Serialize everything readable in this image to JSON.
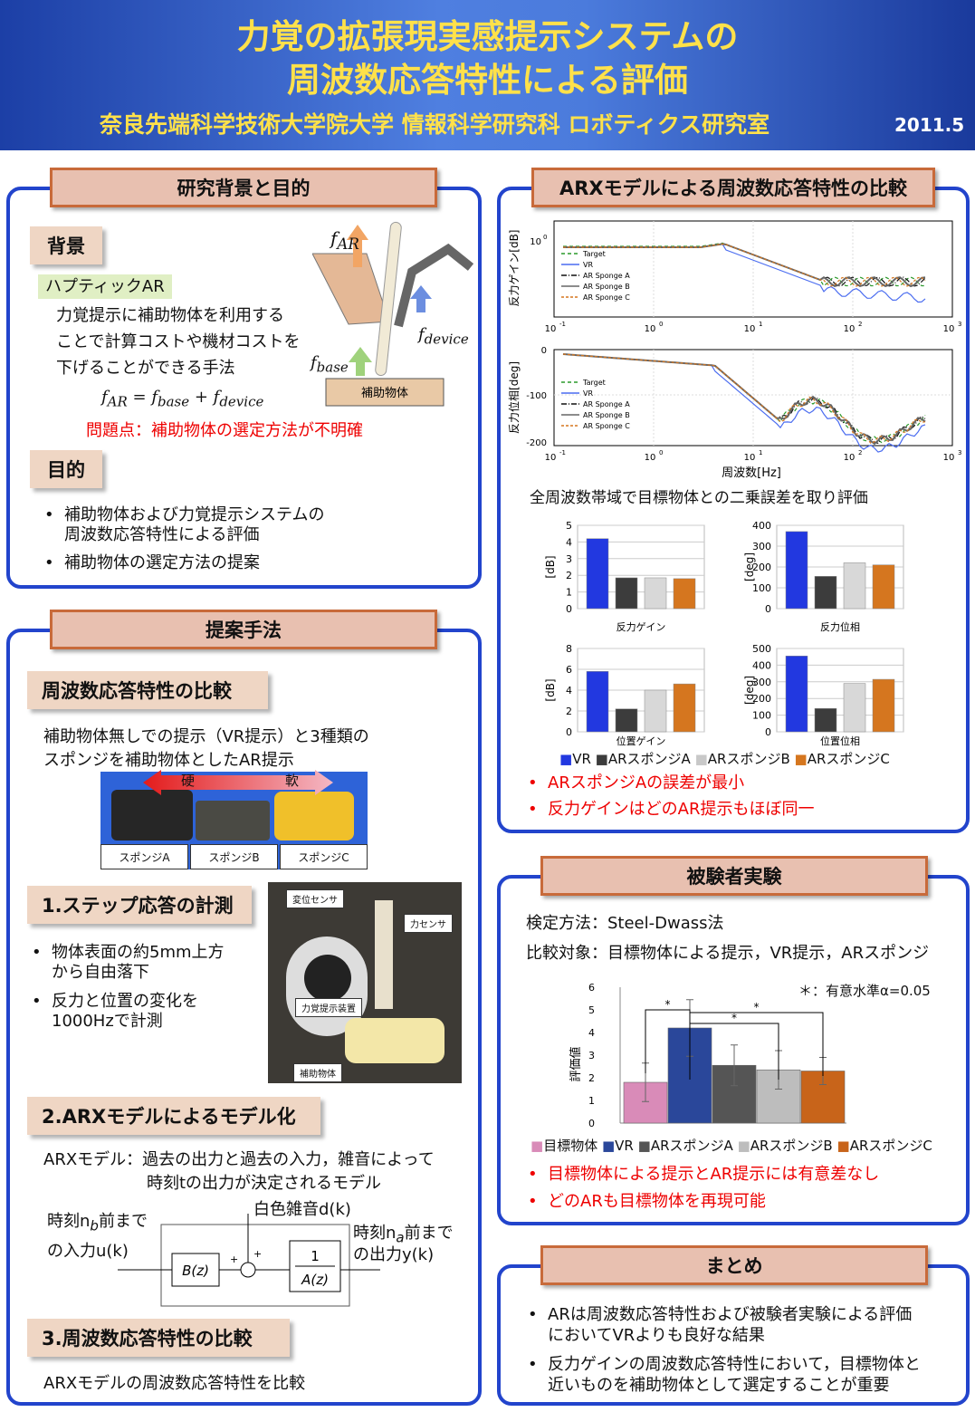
{
  "header": {
    "title1": "力覚の拡張現実感提示システムの",
    "title2": "周波数応答特性による評価",
    "affiliation": "奈良先端科学技術大学院大学  情報科学研究科  ロボティクス研究室",
    "date": "2011.5"
  },
  "background": {
    "title": "研究背景と目的",
    "sec1": "背景",
    "haptic": "ハプティックAR",
    "desc": [
      "力覚提示に補助物体を利用する",
      "ことで計算コストや機材コストを",
      "下げることができる手法"
    ],
    "problem": "問題点：補助物体の選定方法が不明確",
    "fig_label": "補助物体",
    "sec2": "目的",
    "purpose": [
      "補助物体および力覚提示システムの",
      "周波数応答特性による評価",
      "補助物体の選定方法の提案"
    ]
  },
  "method": {
    "title": "提案手法",
    "s1": "周波数応答特性の比較",
    "s1_text": [
      "補助物体無しでの提示（VR提示）と3種類の",
      "スポンジを補助物体としたAR提示"
    ],
    "hard": "硬",
    "soft": "軟",
    "sponges": [
      "スポンジA",
      "スポンジB",
      "スポンジC"
    ],
    "s2": "1.ステップ応答の計測",
    "s2_items": [
      "物体表面の約5mm上方",
      "から自由落下",
      "反力と位置の変化を",
      "1000Hzで計測"
    ],
    "photo_labels": [
      "変位センサ",
      "力センサ",
      "力覚提示装置",
      "補助物体"
    ],
    "s3": "2.ARXモデルによるモデル化",
    "s3_text": [
      "ARXモデル：過去の出力と過去の入力，雑音によって",
      "時刻tの出力が決定されるモデル"
    ],
    "block": {
      "noise": "白色雑音d(k)",
      "in1": "時刻n",
      "in1b": "前まで",
      "in2": "の入力u(k)",
      "out1": "時刻n",
      "out1b": "前まで",
      "out2": "の出力y(k)",
      "B": "B(z)",
      "one": "1",
      "A": "A(z)",
      "plus": "+"
    },
    "s4": "3.周波数応答特性の比較",
    "s4_text": "ARXモデルの周波数応答特性を比較"
  },
  "arx": {
    "title": "ARXモデルによる周波数応答特性の比較",
    "ylabel1": "反力ゲイン[dB]",
    "ylabel2": "反力位相[deg]",
    "xlabel": "周波数[Hz]",
    "legend": [
      "Target",
      "VR",
      "AR Sponge A",
      "AR Sponge B",
      "AR Sponge C"
    ],
    "xticks": [
      "10",
      "10",
      "10",
      "10",
      "10"
    ],
    "xexp": [
      "-1",
      "0",
      "1",
      "2",
      "3"
    ],
    "yticks1": [
      "10",
      "0"
    ],
    "yticks2": [
      "0",
      "-100",
      "-200"
    ],
    "error_title": "全周波数帯域で目標物体との二乗誤差を取り評価",
    "legend2": [
      "VR",
      "ARスポンジA",
      "ARスポンジB",
      "ARスポンジC"
    ],
    "bullets": [
      "ARスポンジAの誤差が最小",
      "反力ゲインはどのAR提示もほぼ同一"
    ]
  },
  "subject": {
    "title": "被験者実験",
    "method": "検定方法：Steel-Dwass法",
    "compare": "比較対象：目標物体による提示，VR提示，ARスポンジ",
    "note": "＊：有意水準α=0.05",
    "ylabel": "評価値",
    "star": "*",
    "legend": [
      "目標物体",
      "VR",
      "ARスポンジA",
      "ARスポンジB",
      "ARスポンジC"
    ],
    "bullets": [
      "目標物体による提示とAR提示には有意差なし",
      "どのARも目標物体を再現可能"
    ]
  },
  "summary": {
    "title": "まとめ",
    "items": [
      "ARは周波数応答特性および被験者実験による評価",
      "においてVRよりも良好な結果",
      "反力ゲインの周波数応答特性において，目標物体と",
      "近いものを補助物体として選定することが重要"
    ]
  },
  "chart_data": [
    {
      "type": "bar",
      "title": "",
      "xlabel": "反力ゲイン",
      "ylabel": "[dB]",
      "ylim": [
        0,
        5
      ],
      "yticks": [
        0,
        1,
        2,
        3,
        4,
        5
      ],
      "categories": [
        "VR",
        "ARスポンジA",
        "ARスポンジB",
        "ARスポンジC"
      ],
      "values": [
        4.2,
        1.85,
        1.85,
        1.8
      ],
      "colors": [
        "#2238e0",
        "#3c3c3c",
        "#d8d8d8",
        "#d5761f"
      ]
    },
    {
      "type": "bar",
      "title": "",
      "xlabel": "反力位相",
      "ylabel": "[deg]",
      "ylim": [
        0,
        400
      ],
      "yticks": [
        0,
        100,
        200,
        300,
        400
      ],
      "categories": [
        "VR",
        "ARスポンジA",
        "ARスポンジB",
        "ARスポンジC"
      ],
      "values": [
        370,
        155,
        220,
        210
      ],
      "colors": [
        "#2238e0",
        "#3c3c3c",
        "#d8d8d8",
        "#d5761f"
      ]
    },
    {
      "type": "bar",
      "title": "",
      "xlabel": "位置ゲイン",
      "ylabel": "[dB]",
      "ylim": [
        0,
        8
      ],
      "yticks": [
        0,
        2,
        4,
        6,
        8
      ],
      "categories": [
        "VR",
        "ARスポンジA",
        "ARスポンジB",
        "ARスポンジC"
      ],
      "values": [
        5.8,
        2.2,
        4.0,
        4.6
      ],
      "colors": [
        "#2238e0",
        "#3c3c3c",
        "#d8d8d8",
        "#d5761f"
      ]
    },
    {
      "type": "bar",
      "title": "",
      "xlabel": "位置位相",
      "ylabel": "[deg]",
      "ylim": [
        0,
        500
      ],
      "yticks": [
        0,
        100,
        200,
        300,
        400,
        500
      ],
      "categories": [
        "VR",
        "ARスポンジA",
        "ARスポンジB",
        "ARスポンジC"
      ],
      "values": [
        455,
        140,
        290,
        315
      ],
      "colors": [
        "#2238e0",
        "#3c3c3c",
        "#d8d8d8",
        "#d5761f"
      ]
    },
    {
      "type": "bar",
      "title": "",
      "ylabel": "評価値",
      "ylim": [
        0,
        6
      ],
      "yticks": [
        0,
        1,
        2,
        3,
        4,
        5,
        6
      ],
      "categories": [
        "目標物体",
        "VR",
        "ARスポンジA",
        "ARスポンジB",
        "ARスポンジC"
      ],
      "values": [
        1.8,
        4.2,
        2.55,
        2.35,
        2.3
      ],
      "errors": [
        0.85,
        1.25,
        0.9,
        0.85,
        0.6
      ],
      "colors": [
        "#d98bb8",
        "#2a479a",
        "#555555",
        "#bdbdbd",
        "#c8641a"
      ]
    }
  ]
}
